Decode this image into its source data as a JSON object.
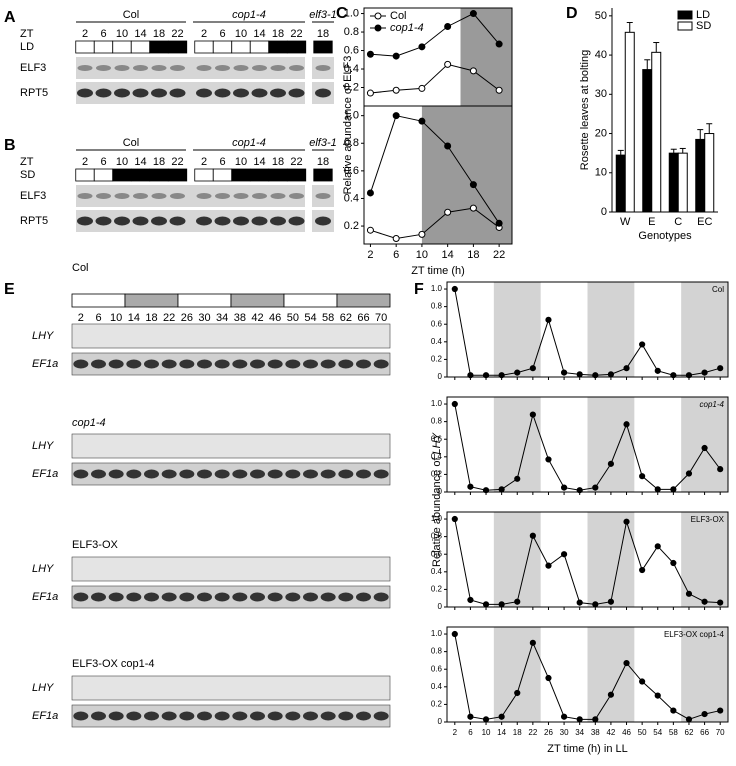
{
  "panel_labels": [
    "A",
    "B",
    "C",
    "D",
    "E",
    "F"
  ],
  "blots_ab": [
    {
      "genotypes": [
        "Col",
        "cop1-4",
        "elf3-1"
      ],
      "zt_label": "ZT",
      "zt": [
        2,
        6,
        10,
        14,
        18,
        22,
        2,
        6,
        10,
        14,
        18,
        22,
        18
      ],
      "photoperiod": "LD",
      "rows": [
        "ELF3",
        "RPT5"
      ]
    },
    {
      "genotypes": [
        "Col",
        "cop1-4",
        "elf3-1"
      ],
      "zt_label": "ZT",
      "zt": [
        2,
        6,
        10,
        14,
        18,
        22,
        2,
        6,
        10,
        14,
        18,
        22,
        18
      ],
      "photoperiod": "SD",
      "rows": [
        "ELF3",
        "RPT5"
      ]
    }
  ],
  "blots_e": {
    "zt": [
      2,
      6,
      10,
      14,
      18,
      22,
      26,
      30,
      34,
      38,
      42,
      46,
      50,
      54,
      58,
      62,
      66,
      70
    ],
    "groups": [
      {
        "name": "Col",
        "rows": [
          "LHY",
          "EF1a"
        ]
      },
      {
        "name": "cop1-4",
        "rows": [
          "LHY",
          "EF1a"
        ]
      },
      {
        "name": "ELF3-OX",
        "rows": [
          "LHY",
          "EF1a"
        ]
      },
      {
        "name": "ELF3-OX cop1-4",
        "rows": [
          "LHY",
          "EF1a"
        ]
      }
    ]
  },
  "f_ylabel": {
    "text": "Relative abundance of ",
    "gene": "LHY"
  },
  "chart_data": [
    {
      "type": "line",
      "ylabel": "Relative abundance of ELF3",
      "x": [
        2,
        6,
        10,
        14,
        18,
        22
      ],
      "xlim": [
        1,
        24
      ],
      "ylim": [
        0,
        1.06
      ],
      "yticks": [
        0.2,
        0.4,
        0.6,
        0.8,
        {
          "value": 1,
          "label": "1.0"
        }
      ],
      "shaded": [
        [
          16,
          24
        ]
      ],
      "legend": "upper left",
      "series": [
        {
          "name": "Col",
          "color": "#ffffff",
          "values": [
            0.14,
            0.17,
            0.19,
            0.45,
            0.38,
            0.17
          ]
        },
        {
          "name": "cop1-4",
          "color": "#000000",
          "values": [
            0.56,
            0.54,
            0.64,
            0.86,
            1.0,
            0.67
          ]
        }
      ]
    },
    {
      "type": "line",
      "xlabel": "ZT time (h)",
      "x": [
        2,
        6,
        10,
        14,
        18,
        22
      ],
      "xlim": [
        1,
        24
      ],
      "ylim": [
        0.07,
        1.07
      ],
      "xticks": [
        2,
        6,
        10,
        14,
        18,
        22
      ],
      "yticks": [
        0.2,
        0.4,
        0.6,
        0.8,
        {
          "value": 1,
          "label": "1.0"
        }
      ],
      "shaded": [
        [
          10,
          24
        ]
      ],
      "series": [
        {
          "color": "#ffffff",
          "values": [
            0.17,
            0.11,
            0.14,
            0.3,
            0.33,
            0.19
          ]
        },
        {
          "color": "#000000",
          "values": [
            0.44,
            1.0,
            0.96,
            0.78,
            0.5,
            0.22
          ]
        }
      ]
    },
    {
      "type": "bar",
      "xlabel": "Genotypes",
      "ylabel": "Rosette leaves at bolting",
      "categories": [
        "W",
        "E",
        "C",
        "EC"
      ],
      "ylim": [
        0,
        52
      ],
      "yticks": [
        0,
        10,
        20,
        30,
        40,
        50
      ],
      "legend": "upper right",
      "series": [
        {
          "name": "LD",
          "color": "#000000",
          "values": [
            14.5,
            36.3,
            15,
            18.5
          ],
          "errors": [
            1.2,
            2.5,
            1,
            2.5
          ]
        },
        {
          "name": "SD",
          "color": "#ffffff",
          "values": [
            45.8,
            40.7,
            15,
            20
          ],
          "errors": [
            2.5,
            2.5,
            1.2,
            2.5
          ]
        }
      ]
    },
    {
      "type": "line",
      "title": "Col",
      "x": [
        2,
        6,
        10,
        14,
        18,
        22,
        26,
        30,
        34,
        38,
        42,
        46,
        50,
        54,
        58,
        62,
        66,
        70
      ],
      "xlim": [
        0,
        72
      ],
      "ylim": [
        0,
        1.08
      ],
      "yticks": [
        0,
        0.2,
        0.4,
        0.6,
        0.8,
        {
          "value": 1,
          "label": "1.0"
        }
      ],
      "shaded": [
        [
          12,
          24
        ],
        [
          36,
          48
        ],
        [
          60,
          72
        ]
      ],
      "series": [
        {
          "color": "#000000",
          "values": [
            1.0,
            0.02,
            0.02,
            0.02,
            0.05,
            0.1,
            0.65,
            0.05,
            0.03,
            0.02,
            0.03,
            0.1,
            0.37,
            0.07,
            0.02,
            0.02,
            0.05,
            0.1
          ]
        }
      ]
    },
    {
      "type": "line",
      "title": "cop1-4",
      "x": [
        2,
        6,
        10,
        14,
        18,
        22,
        26,
        30,
        34,
        38,
        42,
        46,
        50,
        54,
        58,
        62,
        66,
        70
      ],
      "xlim": [
        0,
        72
      ],
      "ylim": [
        0,
        1.08
      ],
      "yticks": [
        0,
        0.2,
        0.4,
        0.6,
        0.8,
        {
          "value": 1,
          "label": "1.0"
        }
      ],
      "shaded": [
        [
          12,
          24
        ],
        [
          36,
          48
        ],
        [
          60,
          72
        ]
      ],
      "series": [
        {
          "color": "#000000",
          "values": [
            1.0,
            0.06,
            0.02,
            0.03,
            0.15,
            0.88,
            0.37,
            0.05,
            0.02,
            0.05,
            0.32,
            0.77,
            0.18,
            0.03,
            0.03,
            0.21,
            0.5,
            0.26
          ]
        }
      ]
    },
    {
      "type": "line",
      "title": "ELF3-OX",
      "x": [
        2,
        6,
        10,
        14,
        18,
        22,
        26,
        30,
        34,
        38,
        42,
        46,
        50,
        54,
        58,
        62,
        66,
        70
      ],
      "xlim": [
        0,
        72
      ],
      "ylim": [
        0,
        1.08
      ],
      "yticks": [
        0,
        0.2,
        0.4,
        0.6,
        0.8,
        {
          "value": 1,
          "label": "1.0"
        }
      ],
      "shaded": [
        [
          12,
          24
        ],
        [
          36,
          48
        ],
        [
          60,
          72
        ]
      ],
      "series": [
        {
          "color": "#000000",
          "values": [
            1.0,
            0.08,
            0.03,
            0.03,
            0.06,
            0.81,
            0.47,
            0.6,
            0.05,
            0.03,
            0.06,
            0.97,
            0.42,
            0.69,
            0.5,
            0.15,
            0.06,
            0.05
          ]
        }
      ]
    },
    {
      "type": "line",
      "title": "ELF3-OX cop1-4",
      "xlabel": "ZT time (h) in LL",
      "x": [
        2,
        6,
        10,
        14,
        18,
        22,
        26,
        30,
        34,
        38,
        42,
        46,
        50,
        54,
        58,
        62,
        66,
        70
      ],
      "xlim": [
        0,
        72
      ],
      "ylim": [
        0,
        1.08
      ],
      "xticks": [
        2,
        6,
        10,
        14,
        18,
        22,
        26,
        30,
        34,
        38,
        42,
        46,
        50,
        54,
        58,
        62,
        66,
        70
      ],
      "yticks": [
        0,
        0.2,
        0.4,
        0.6,
        0.8,
        {
          "value": 1,
          "label": "1.0"
        }
      ],
      "shaded": [
        [
          12,
          24
        ],
        [
          36,
          48
        ],
        [
          60,
          72
        ]
      ],
      "series": [
        {
          "color": "#000000",
          "values": [
            1.0,
            0.06,
            0.03,
            0.06,
            0.33,
            0.9,
            0.5,
            0.06,
            0.03,
            0.03,
            0.31,
            0.67,
            0.46,
            0.3,
            0.13,
            0.03,
            0.09,
            0.13
          ]
        }
      ]
    }
  ]
}
